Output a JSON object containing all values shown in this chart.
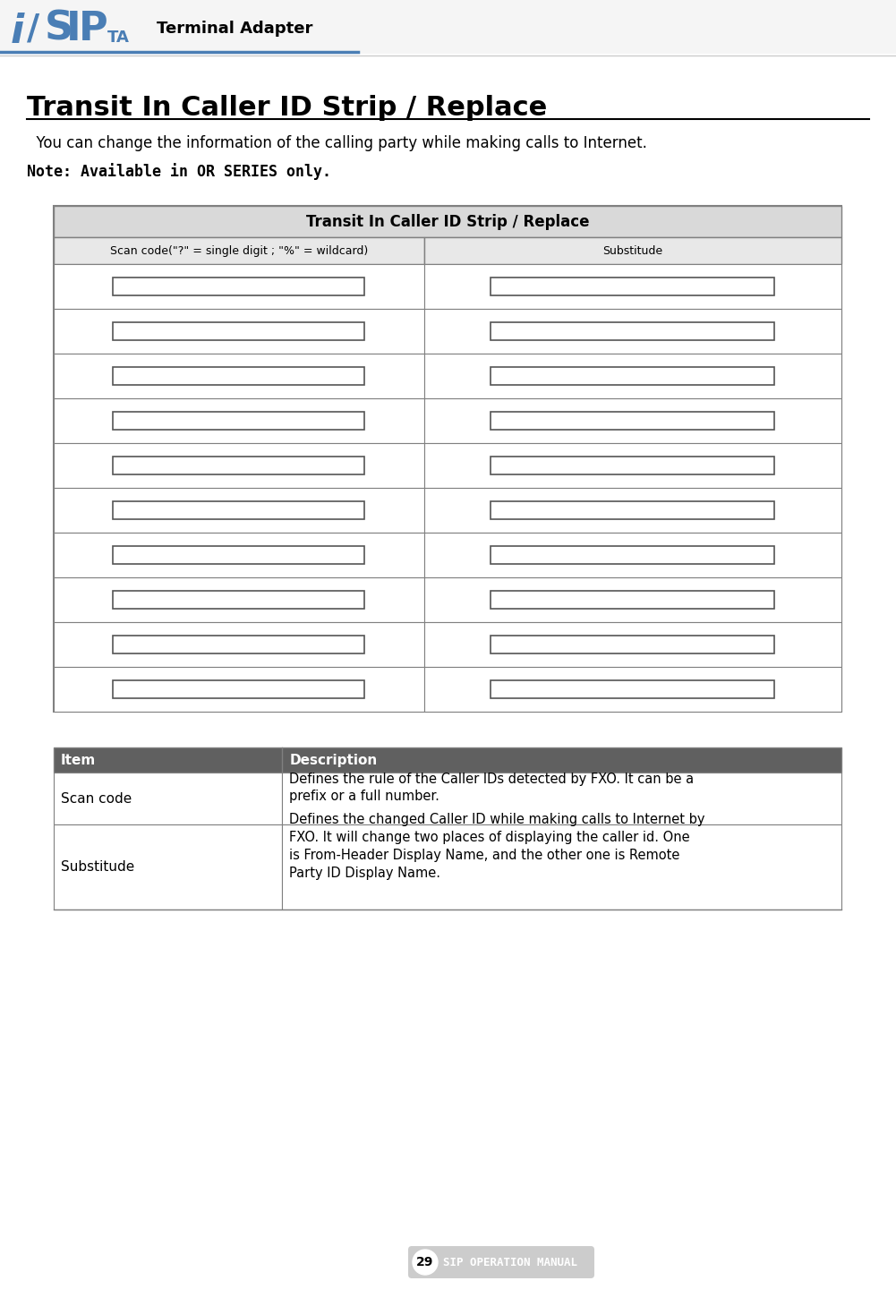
{
  "title": "Transit In Caller ID Strip / Replace",
  "heading": "Transit In Caller ID Strip / Replace",
  "intro_text": "  You can change the information of the calling party while making calls to Internet.",
  "note_text": "Note: Available in OR SERIES only.",
  "table_title": "Transit In Caller ID Strip / Replace",
  "col1_header": "Scan code(\"?\" = single digit ; \"%\" = wildcard)",
  "col2_header": "Substitude",
  "num_rows": 10,
  "desc_items": [
    {
      "item": "Scan code",
      "description": "Defines the rule of the Caller IDs detected by FXO. It can be a\nprefix or a full number."
    },
    {
      "item": "Substitude",
      "description": "Defines the changed Caller ID while making calls to Internet by\nFXO. It will change two places of displaying the caller id. One\nis From-Header Display Name, and the other one is Remote\nParty ID Display Name."
    }
  ],
  "page_number": "29",
  "footer_text": "SIP OPERATION MANUAL",
  "bg_color": "#ffffff",
  "header_bg": "#d9d9d9",
  "table_header_bg": "#d9d9d9",
  "col_header_bg": "#e8e8e8",
  "border_color": "#808080",
  "dark_border": "#404040",
  "text_color": "#000000",
  "blue_color": "#4a7eb5",
  "input_box_color": "#ffffff",
  "input_box_border": "#606060",
  "desc_header_bg": "#606060",
  "desc_header_text": "#ffffff"
}
